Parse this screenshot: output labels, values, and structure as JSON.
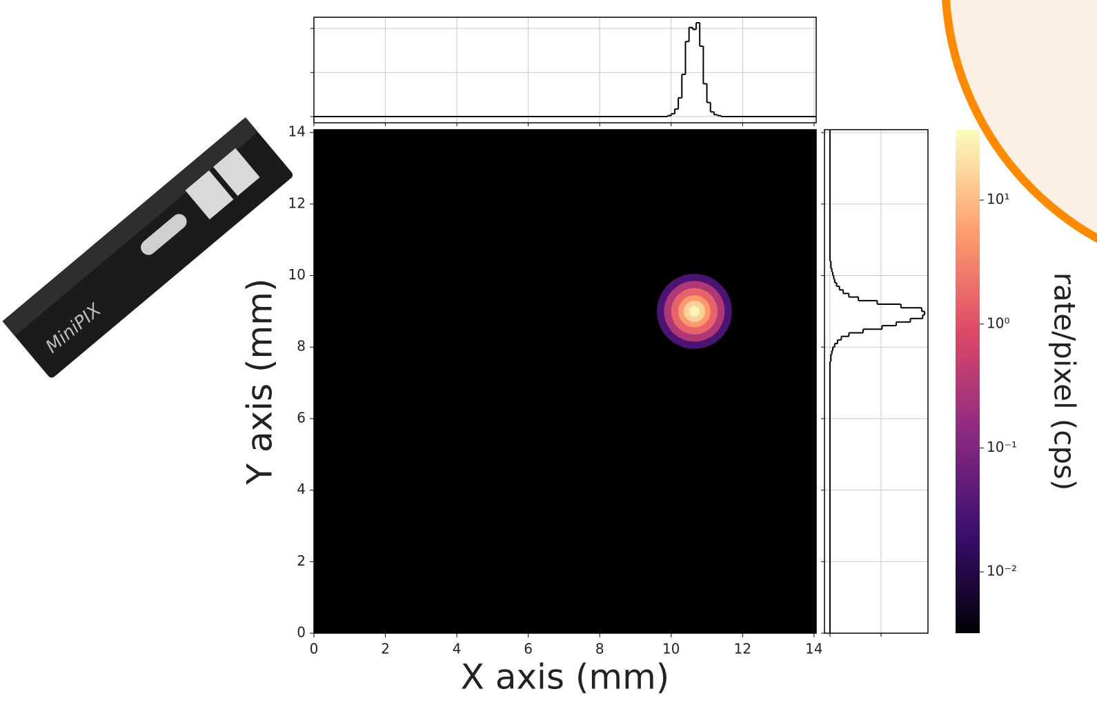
{
  "device": {
    "label": "MiniPIX"
  },
  "chart_data": [
    {
      "type": "heatmap",
      "xlabel": "X axis (mm)",
      "ylabel": "Y axis (mm)",
      "xlim": [
        0,
        14.06
      ],
      "ylim": [
        0,
        14.08
      ],
      "xticks": [
        0,
        2,
        4,
        6,
        8,
        10,
        12,
        14
      ],
      "yticks": [
        0,
        2,
        4,
        6,
        8,
        10,
        12,
        14
      ],
      "background": "#000000",
      "center": [
        10.65,
        9.0
      ],
      "radius": [
        1.05,
        0.85,
        0.65,
        0.45,
        0.3,
        0.15
      ],
      "values": [
        0.03,
        0.3,
        1.5,
        5,
        15,
        30
      ]
    },
    {
      "type": "histogram",
      "orientation": "vertical",
      "color": "#000000",
      "grid": true,
      "xlim": [
        0,
        14.06
      ],
      "ylim": [
        -0.066,
        1.059
      ],
      "xticks": [
        0,
        2,
        4,
        6,
        8,
        10,
        12,
        14
      ],
      "yticks": [
        0,
        0.47,
        0.94
      ],
      "bins": [
        9.8,
        9.9,
        10.0,
        10.1,
        10.2,
        10.3,
        10.4,
        10.5,
        10.6,
        10.7,
        10.8,
        10.9,
        11.0,
        11.1,
        11.2,
        11.3,
        11.4,
        11.5,
        11.6
      ],
      "counts": [
        0,
        0.01,
        0.03,
        0.08,
        0.2,
        0.45,
        0.8,
        0.95,
        0.93,
        1.0,
        0.75,
        0.35,
        0.15,
        0.05,
        0.02,
        0.01,
        0,
        0
      ]
    },
    {
      "type": "histogram",
      "orientation": "horizontal",
      "color": "#000000",
      "grid": true,
      "xlim": [
        -0.058,
        1.036
      ],
      "ylim": [
        0,
        14.08
      ],
      "xticks": [
        0,
        0.54
      ],
      "yticks": [
        0,
        2,
        4,
        6,
        8,
        10,
        12,
        14
      ],
      "bins": [
        7.6,
        7.7,
        7.8,
        7.9,
        8.0,
        8.1,
        8.2,
        8.3,
        8.4,
        8.5,
        8.6,
        8.7,
        8.8,
        8.9,
        9.0,
        9.1,
        9.2,
        9.3,
        9.4,
        9.5,
        9.6,
        9.7,
        9.8,
        9.9,
        10.0,
        10.1,
        10.2,
        10.3,
        10.4
      ],
      "counts": [
        0.01,
        0.01,
        0.02,
        0.03,
        0.05,
        0.08,
        0.12,
        0.2,
        0.35,
        0.55,
        0.7,
        0.85,
        0.98,
        1.0,
        0.97,
        0.75,
        0.5,
        0.3,
        0.2,
        0.14,
        0.1,
        0.07,
        0.05,
        0.04,
        0.03,
        0.02,
        0.01,
        0.01
      ]
    },
    {
      "type": "colorbar",
      "label": "rate/pixel (cps)",
      "log_scale": true,
      "colormap": "magma",
      "clim": [
        0.0032,
        37
      ],
      "ticks": [
        {
          "value": 0.01,
          "label": "10⁻²"
        },
        {
          "value": 0.1,
          "label": "10⁻¹"
        },
        {
          "value": 1,
          "label": "10⁰"
        },
        {
          "value": 10,
          "label": "10¹"
        }
      ]
    }
  ]
}
